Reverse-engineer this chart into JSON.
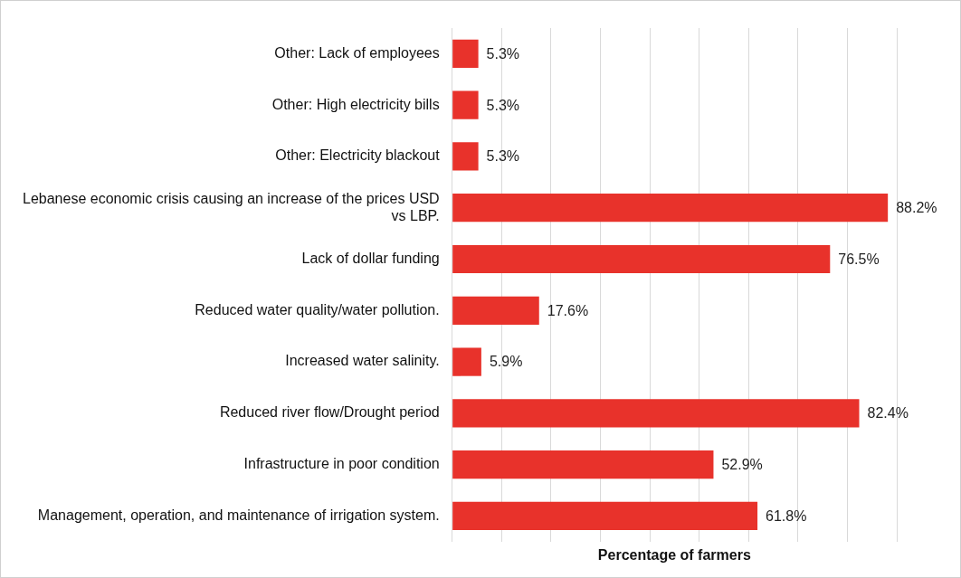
{
  "chart_data": {
    "type": "bar",
    "orientation": "horizontal",
    "xlabel": "Percentage of farmers",
    "categories": [
      "Other: Lack of employees",
      "Other: High electricity bills",
      "Other: Electricity blackout",
      "Lebanese economic crisis causing an increase of the prices USD vs LBP.",
      "Lack of dollar funding",
      "Reduced water quality/water pollution.",
      "Increased water salinity.",
      "Reduced river flow/Drought period",
      "Infrastructure in poor condition",
      "Management, operation, and maintenance of irrigation system."
    ],
    "values": [
      5.3,
      5.3,
      5.3,
      88.2,
      76.5,
      17.6,
      5.9,
      82.4,
      52.9,
      61.8
    ],
    "value_labels": [
      "5.3%",
      "5.3%",
      "5.3%",
      "88.2%",
      "76.5%",
      "17.6%",
      "5.9%",
      "82.4%",
      "52.9%",
      "61.8%"
    ],
    "color": "#e8322b",
    "xlim": [
      0,
      90
    ],
    "xticks": [
      {
        "value": 0,
        "label": null
      },
      {
        "value": 10,
        "label": null
      },
      {
        "value": 20,
        "label": null
      },
      {
        "value": 30,
        "label": null
      },
      {
        "value": 40,
        "label": null
      },
      {
        "value": 50,
        "label": null
      },
      {
        "value": 60,
        "label": null
      },
      {
        "value": 70,
        "label": null
      },
      {
        "value": 80,
        "label": null
      },
      {
        "value": 90,
        "label": null
      }
    ],
    "grid": "x",
    "tick_labels": "y",
    "legend": false
  }
}
